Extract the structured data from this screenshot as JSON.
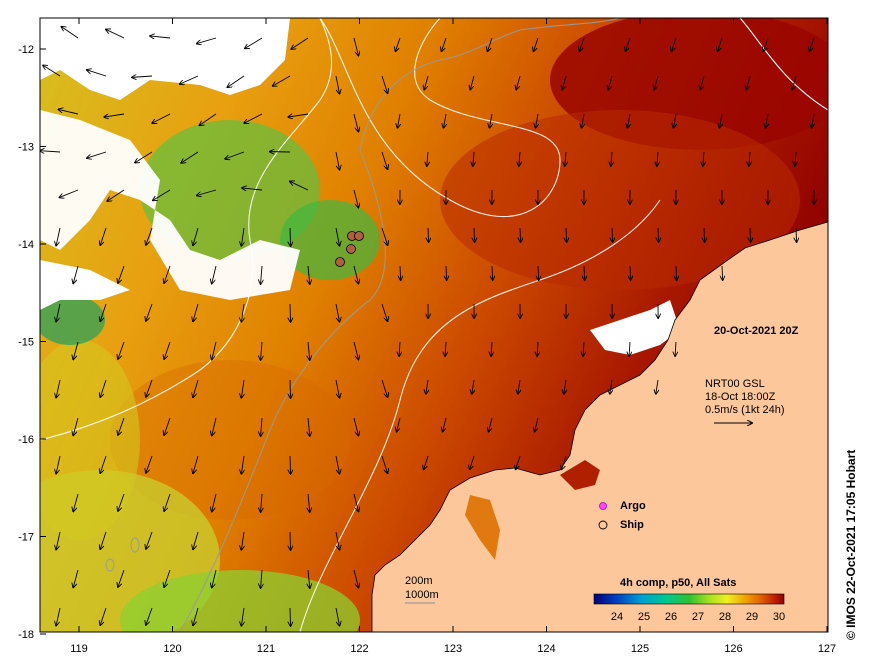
{
  "map": {
    "date_label": "20-Oct-2021 20Z",
    "lat_ticks": [
      "-12",
      "-13",
      "-14",
      "-15",
      "-16",
      "-17",
      "-18"
    ],
    "lon_ticks": [
      "119",
      "120",
      "121",
      "122",
      "123",
      "124",
      "125",
      "126",
      "127"
    ],
    "current_info": {
      "line1": "NRT00 GSL",
      "line2": "18-Oct 18:00Z",
      "line3": "0.5m/s (1kt 24h)"
    },
    "legend": {
      "argo_label": "Argo",
      "ship_label": "Ship",
      "argo_color": "#ff44ff",
      "ship_color": "#b0603a"
    },
    "isobaths": {
      "label_200": "200m",
      "label_1000": "1000m",
      "color_200": "#9a9a9a",
      "color_1000": "#ffffff"
    },
    "colorbar": {
      "title": "4h comp, p50, All Sats",
      "ticks": [
        "24",
        "25",
        "26",
        "27",
        "28",
        "29",
        "30"
      ],
      "colors": [
        "#00007a",
        "#0040c0",
        "#00a0d0",
        "#00c890",
        "#30c030",
        "#a0e020",
        "#f0f020",
        "#f0a000",
        "#e06000",
        "#c02000",
        "#900000"
      ]
    },
    "land_color": "#fcc89b",
    "copyright": "© IMOS 22-Oct-2021 17:05 Hobart"
  }
}
